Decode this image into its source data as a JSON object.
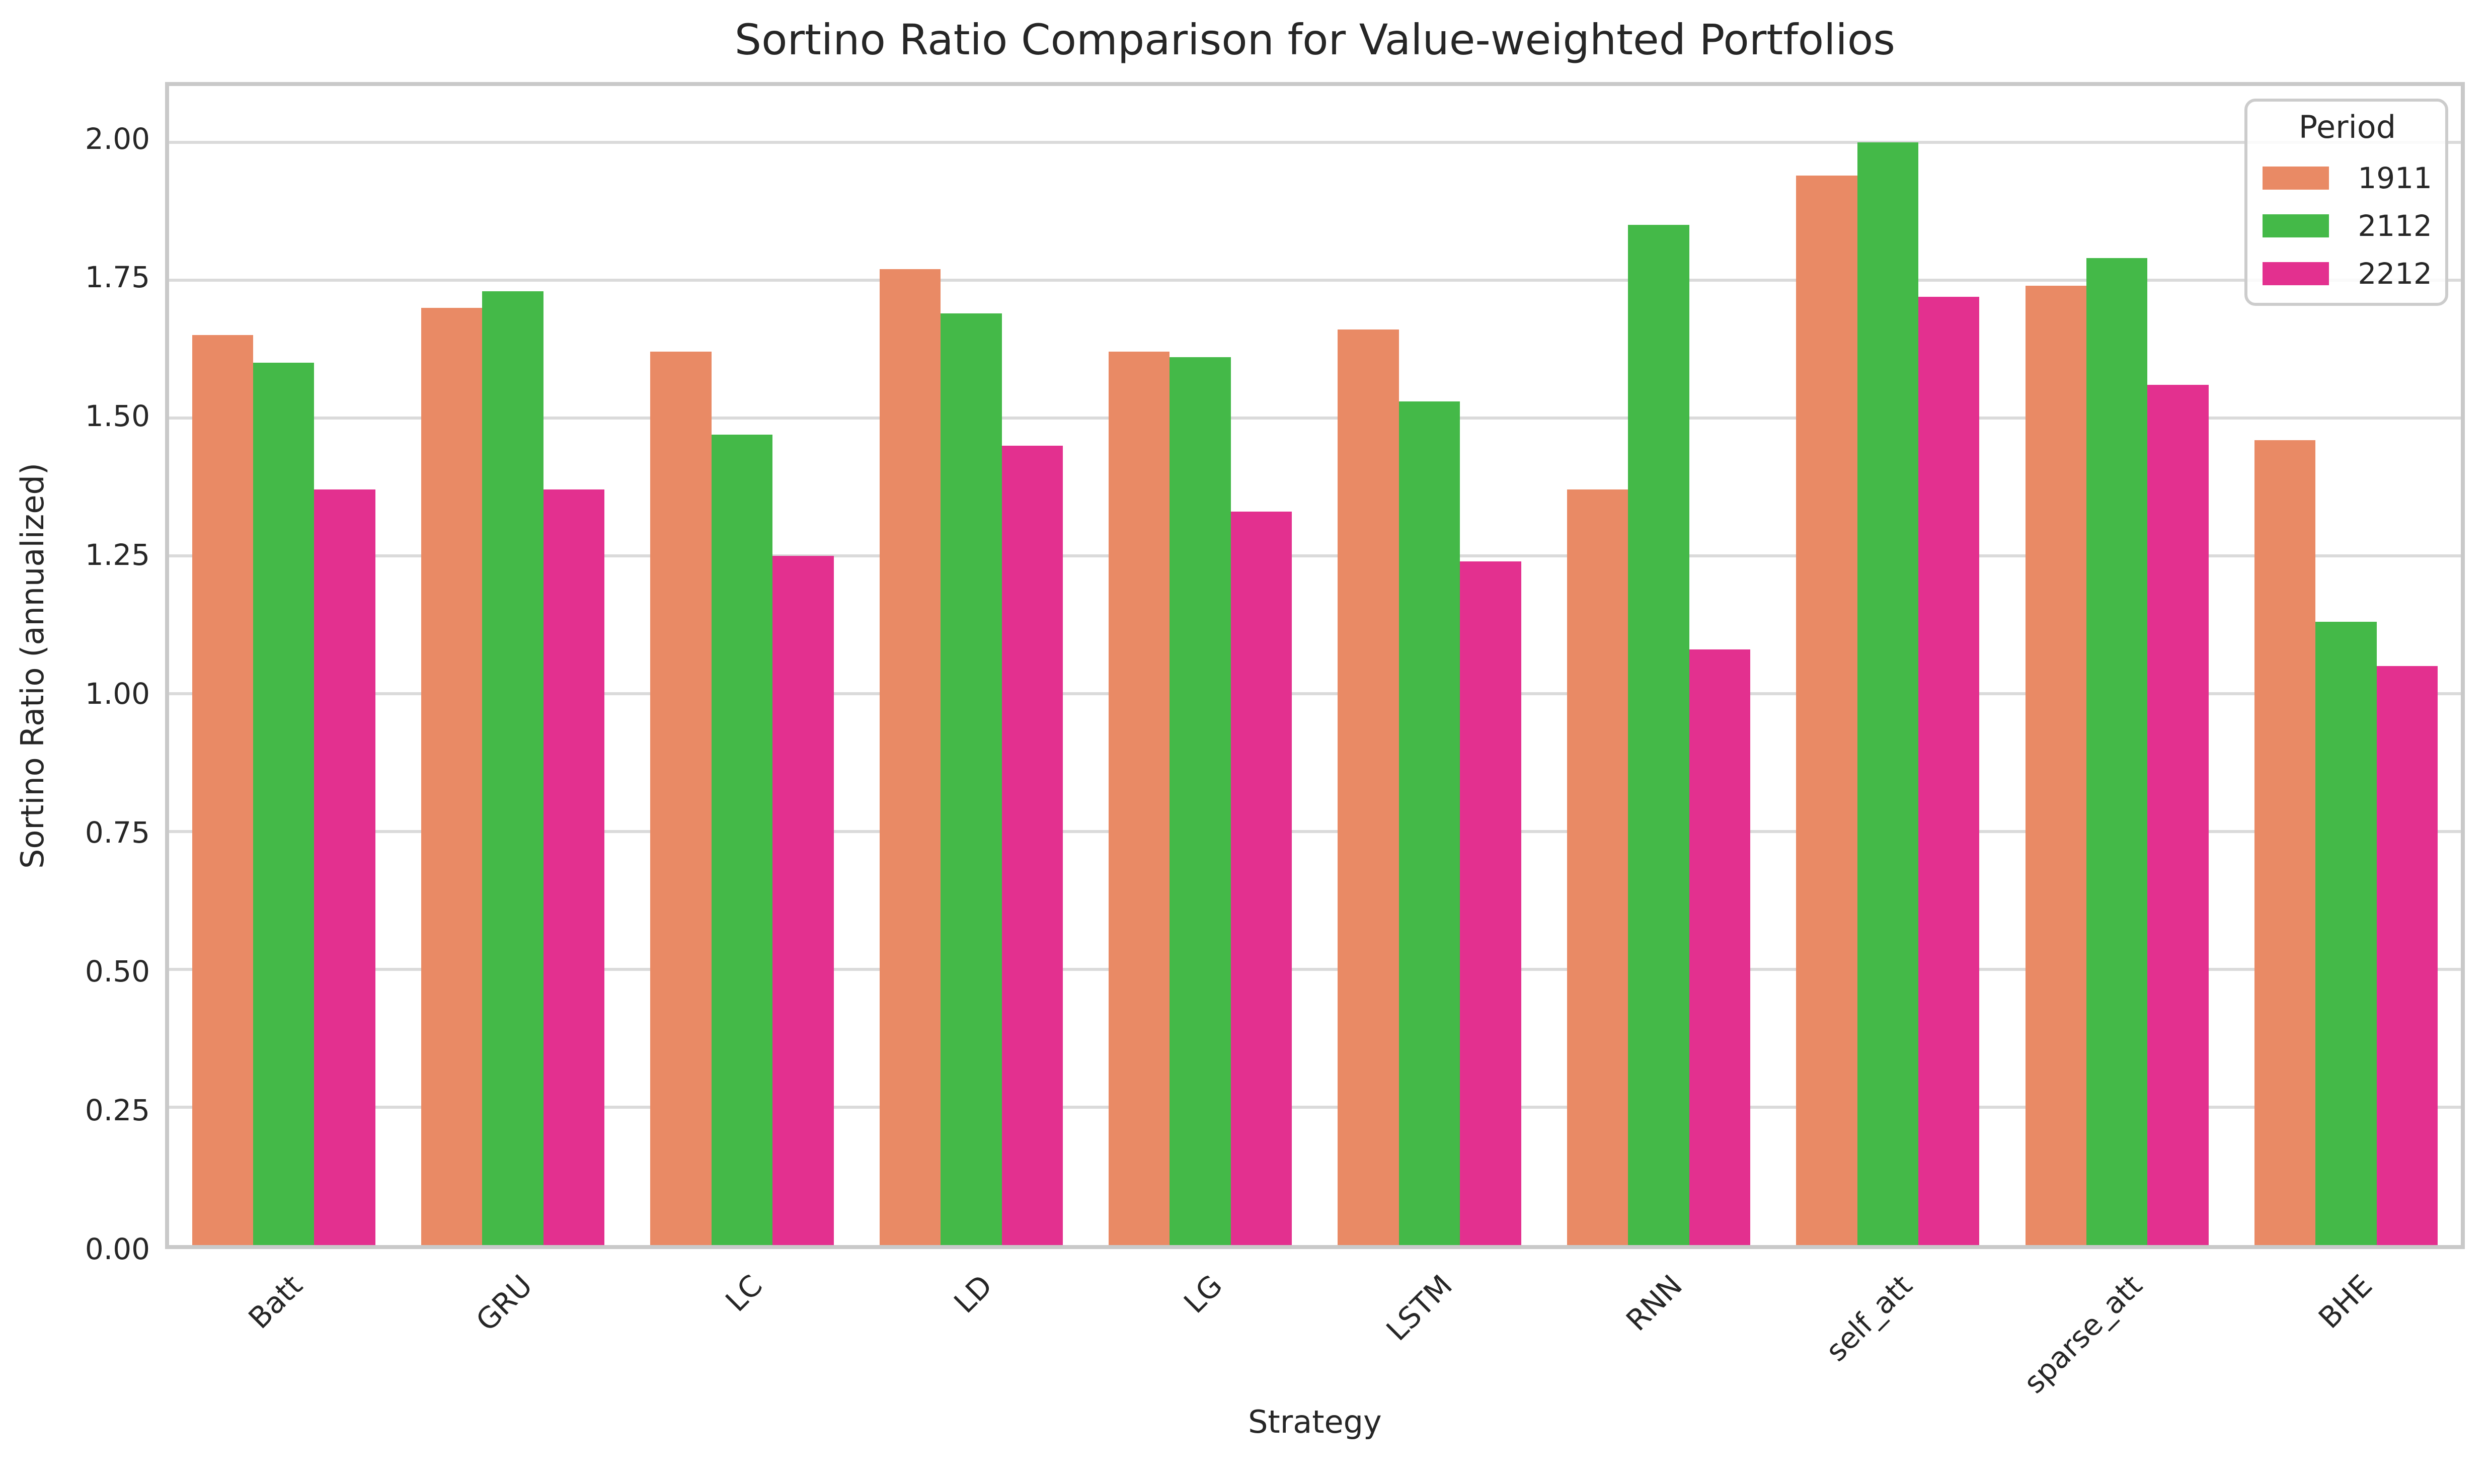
{
  "title": "Sortino Ratio Comparison for Value-weighted Portfolios",
  "xlabel": "Strategy",
  "ylabel": "Sortino Ratio (annualized)",
  "legend": {
    "title": "Period",
    "entries": [
      {
        "label": "1911",
        "color": "#e98a65"
      },
      {
        "label": "2112",
        "color": "#44b948"
      },
      {
        "label": "2212",
        "color": "#e3308f"
      }
    ]
  },
  "chart_data": {
    "type": "bar",
    "title": "Sortino Ratio Comparison for Value-weighted Portfolios",
    "xlabel": "Strategy",
    "ylabel": "Sortino Ratio (annualized)",
    "categories": [
      "Batt",
      "GRU",
      "LC",
      "LD",
      "LG",
      "LSTM",
      "RNN",
      "self_att",
      "sparse_att",
      "BHE"
    ],
    "series": [
      {
        "name": "1911",
        "color": "#e98a65",
        "values": [
          1.65,
          1.7,
          1.62,
          1.77,
          1.62,
          1.66,
          1.37,
          1.94,
          1.74,
          1.46
        ]
      },
      {
        "name": "2112",
        "color": "#44b948",
        "values": [
          1.6,
          1.73,
          1.47,
          1.69,
          1.61,
          1.53,
          1.85,
          2.0,
          1.79,
          1.13
        ]
      },
      {
        "name": "2212",
        "color": "#e3308f",
        "values": [
          1.37,
          1.37,
          1.25,
          1.45,
          1.33,
          1.24,
          1.08,
          1.72,
          1.56,
          1.05
        ]
      }
    ],
    "ylim": [
      0,
      2.102
    ],
    "yticks": [
      "0.00",
      "0.25",
      "0.50",
      "0.75",
      "1.00",
      "1.25",
      "1.50",
      "1.75",
      "2.00"
    ],
    "grid": "horizontal",
    "legend_title": "Period",
    "legend_position": "upper right",
    "colors": {
      "gridline": "#dadada",
      "spine": "#c9c9c9",
      "text": "#262626",
      "background": "#ffffff"
    }
  }
}
